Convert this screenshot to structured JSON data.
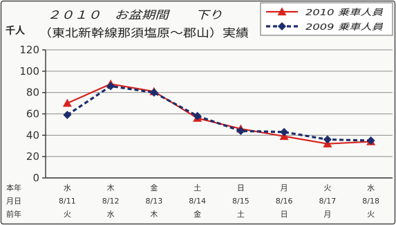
{
  "chart_data": {
    "type": "line",
    "title": "２０１０　お盆期間　　下り",
    "subtitle": "（東北新幹線那須塩原～郡山）実績",
    "ylabel": "千人",
    "categories": [
      "8/11",
      "8/12",
      "8/13",
      "8/14",
      "8/15",
      "8/16",
      "8/17",
      "8/18"
    ],
    "x_row_labels": [
      "本年",
      "月日",
      "前年"
    ],
    "this_year_weekdays": [
      "水",
      "木",
      "金",
      "土",
      "日",
      "月",
      "火",
      "水"
    ],
    "prev_year_weekdays": [
      "火",
      "水",
      "木",
      "金",
      "土",
      "日",
      "月",
      "火"
    ],
    "ylim": [
      0,
      120
    ],
    "yticks": [
      0,
      20,
      40,
      60,
      80,
      100,
      120
    ],
    "grid": true,
    "legend": "top-right",
    "series": [
      {
        "name": "2010 乗車人員",
        "values": [
          70,
          88,
          81,
          56,
          46,
          39,
          32,
          34
        ],
        "color": "#d8231f",
        "line": "solid",
        "marker": "triangle"
      },
      {
        "name": "2009 乗車人員",
        "values": [
          59,
          86,
          80,
          58,
          44,
          43,
          36,
          35
        ],
        "color": "#1d2d6b",
        "line": "dashed",
        "marker": "diamond"
      }
    ]
  }
}
